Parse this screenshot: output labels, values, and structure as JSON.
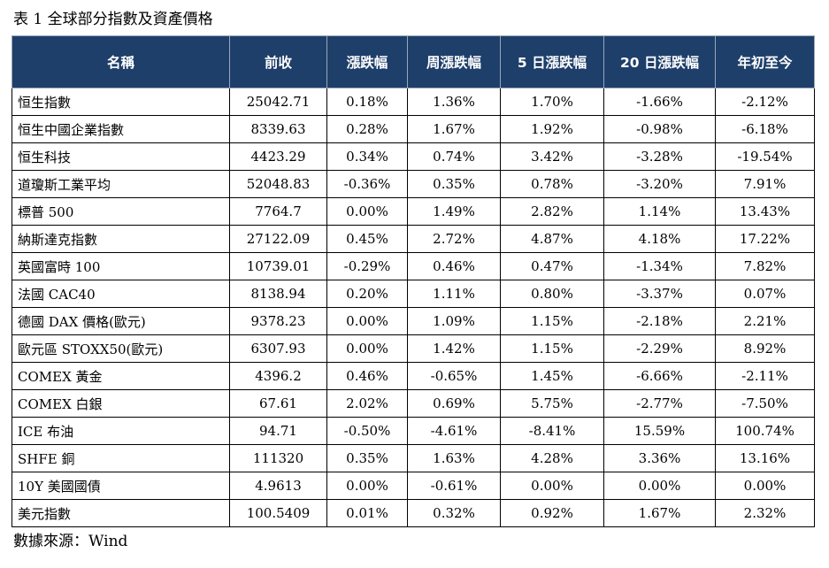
{
  "caption": "表 1 全球部分指數及資產價格",
  "columns": [
    "名稱",
    "前收",
    "漲跌幅",
    "周漲跌幅",
    "5 日漲跌幅",
    "20 日漲跌幅",
    "年初至今"
  ],
  "rows": [
    [
      "恒生指數",
      "25042.71",
      "0.18%",
      "1.36%",
      "1.70%",
      "-1.66%",
      "-2.12%"
    ],
    [
      "恒生中國企業指數",
      "8339.63",
      "0.28%",
      "1.67%",
      "1.92%",
      "-0.98%",
      "-6.18%"
    ],
    [
      "恒生科技",
      "4423.29",
      "0.34%",
      "0.74%",
      "3.42%",
      "-3.28%",
      "-19.54%"
    ],
    [
      "道瓊斯工業平均",
      "52048.83",
      "-0.36%",
      "0.35%",
      "0.78%",
      "-3.20%",
      "7.91%"
    ],
    [
      "標普 500",
      "7764.7",
      "0.00%",
      "1.49%",
      "2.82%",
      "1.14%",
      "13.43%"
    ],
    [
      "納斯達克指數",
      "27122.09",
      "0.45%",
      "2.72%",
      "4.87%",
      "4.18%",
      "17.22%"
    ],
    [
      "英國富時 100",
      "10739.01",
      "-0.29%",
      "0.46%",
      "0.47%",
      "-1.34%",
      "7.82%"
    ],
    [
      "法國 CAC40",
      "8138.94",
      "0.20%",
      "1.11%",
      "0.80%",
      "-3.37%",
      "0.07%"
    ],
    [
      "德國 DAX 價格(歐元)",
      "9378.23",
      "0.00%",
      "1.09%",
      "1.15%",
      "-2.18%",
      "2.21%"
    ],
    [
      "歐元區 STOXX50(歐元)",
      "6307.93",
      "0.00%",
      "1.42%",
      "1.15%",
      "-2.29%",
      "8.92%"
    ],
    [
      "COMEX 黃金",
      "4396.2",
      "0.46%",
      "-0.65%",
      "1.45%",
      "-6.66%",
      "-2.11%"
    ],
    [
      "COMEX 白銀",
      "67.61",
      "2.02%",
      "0.69%",
      "5.75%",
      "-2.77%",
      "-7.50%"
    ],
    [
      "ICE 布油",
      "94.71",
      "-0.50%",
      "-4.61%",
      "-8.41%",
      "15.59%",
      "100.74%"
    ],
    [
      "SHFE 銅",
      "111320",
      "0.35%",
      "1.63%",
      "4.28%",
      "3.36%",
      "13.16%"
    ],
    [
      "10Y 美國國債",
      "4.9613",
      "0.00%",
      "-0.61%",
      "0.00%",
      "0.00%",
      "0.00%"
    ],
    [
      "美元指數",
      "100.5409",
      "0.01%",
      "0.32%",
      "0.92%",
      "1.67%",
      "2.32%"
    ]
  ],
  "source": "數據來源：Wind",
  "colors": {
    "header_bg": "#1e3f6a",
    "header_text": "#ffffff",
    "border": "#000000"
  }
}
